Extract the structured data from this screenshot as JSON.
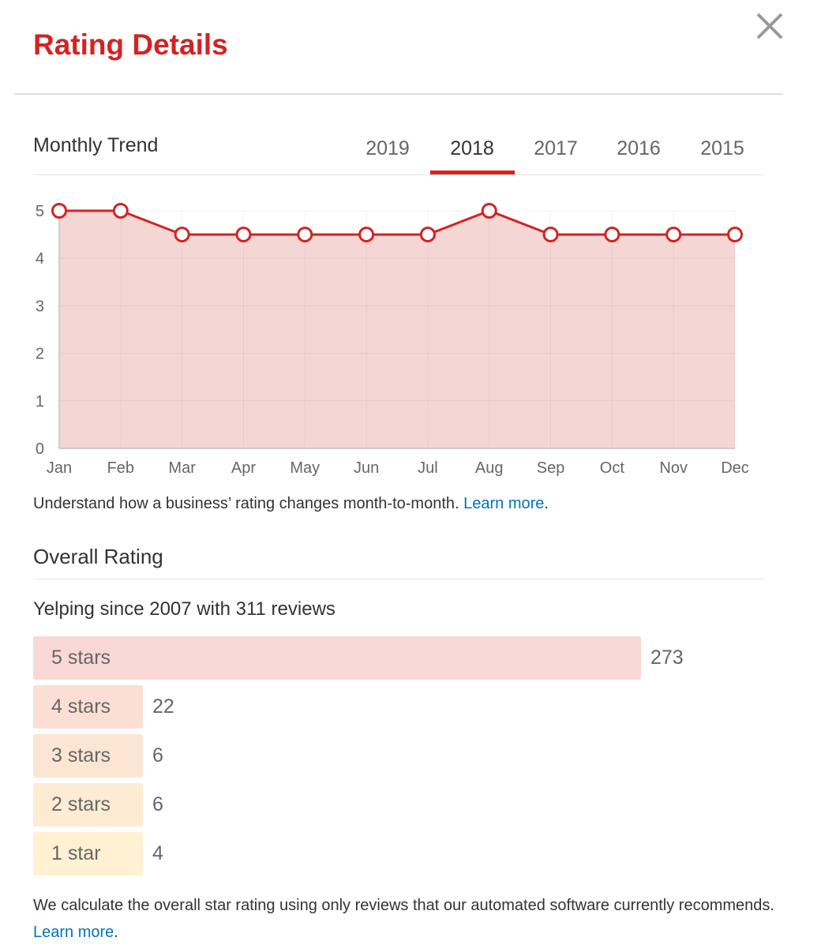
{
  "dialog": {
    "title": "Rating Details",
    "close_icon": "close-x-icon"
  },
  "trend": {
    "heading": "Monthly Trend",
    "tabs": [
      {
        "label": "2019"
      },
      {
        "label": "2018",
        "active": true
      },
      {
        "label": "2017"
      },
      {
        "label": "2016"
      },
      {
        "label": "2015"
      }
    ],
    "note": "Understand how a business’ rating changes month-to-month.",
    "learn_more": "Learn more",
    "period": "."
  },
  "chart_data": {
    "type": "area",
    "categories": [
      "Jan",
      "Feb",
      "Mar",
      "Apr",
      "May",
      "Jun",
      "Jul",
      "Aug",
      "Sep",
      "Oct",
      "Nov",
      "Dec"
    ],
    "values": [
      5,
      5,
      4.5,
      4.5,
      4.5,
      4.5,
      4.5,
      5,
      4.5,
      4.5,
      4.5,
      4.5
    ],
    "ylim": [
      0,
      5
    ],
    "yticks": [
      "0",
      "1",
      "2",
      "3",
      "4",
      "5"
    ],
    "grid": true,
    "colors": {
      "line": "#d32323",
      "fill": "#f4d6d5"
    }
  },
  "overall": {
    "heading": "Overall Rating",
    "since": "Yelping since 2007 with 311 reviews",
    "bars": [
      {
        "label": "5 stars",
        "count": "273",
        "color": "#f9d8d5"
      },
      {
        "label": "4 stars",
        "count": "22",
        "color": "#fbdfd4"
      },
      {
        "label": "3 stars",
        "count": "6",
        "color": "#fce5d3"
      },
      {
        "label": "2 stars",
        "count": "6",
        "color": "#fdebd3"
      },
      {
        "label": "1 star",
        "count": "4",
        "color": "#fff1d2"
      }
    ],
    "note": "We calculate the overall star rating using only reviews that our automated software currently recommends.",
    "learn_more": "Learn more",
    "period": "."
  }
}
